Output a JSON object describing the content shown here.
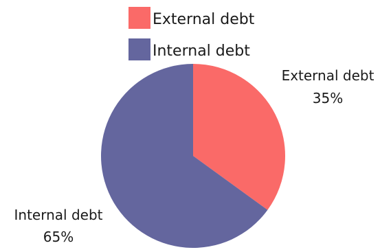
{
  "chart_data": {
    "type": "pie",
    "slices": [
      {
        "label": "External debt",
        "value": 35,
        "value_label": "35%",
        "color": "#fa6a68"
      },
      {
        "label": "Internal debt",
        "value": 65,
        "value_label": "65%",
        "color": "#64669e"
      }
    ],
    "legend": {
      "placement": "top",
      "items": [
        "External debt",
        "Internal debt"
      ]
    }
  }
}
